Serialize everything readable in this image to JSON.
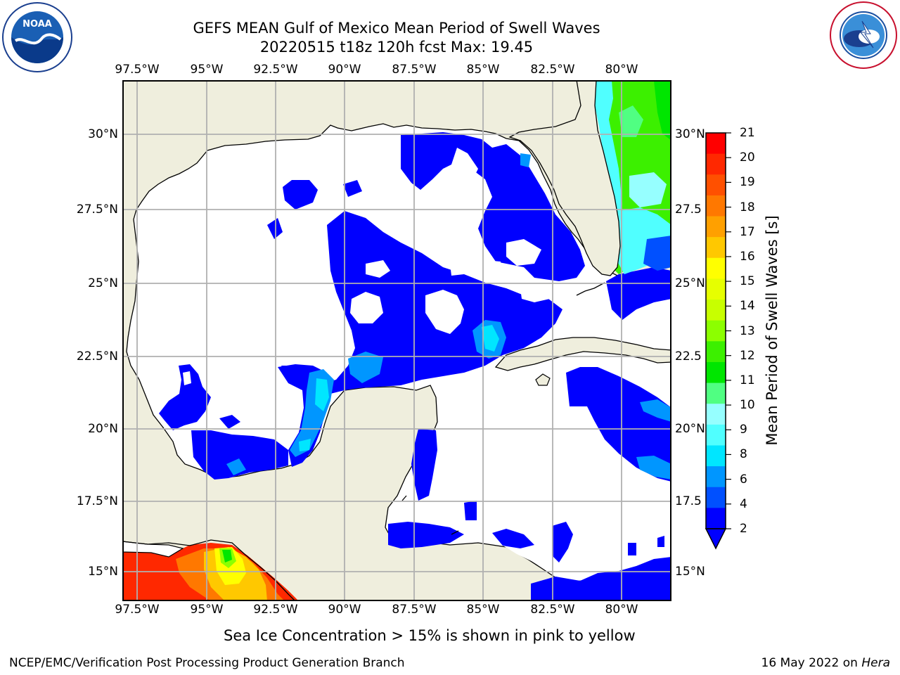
{
  "header": {
    "title_line1": "GEFS MEAN Gulf of Mexico Mean Period of Swell Waves",
    "title_line2": "20220515 t18z 120h fcst   Max: 19.45"
  },
  "logos": {
    "left": "NOAA",
    "left_ring": "NATIONAL OCEANIC AND ATMOSPHERIC ADMINISTRATION · U.S. DEPARTMENT OF COMMERCE",
    "right_ring": "NATIONAL WEATHER SERVICE"
  },
  "map": {
    "lon_labels": [
      "97.5°W",
      "95°W",
      "92.5°W",
      "90°W",
      "87.5°W",
      "85°W",
      "82.5°W",
      "80°W"
    ],
    "lat_labels_left": [
      "30°N",
      "27.5°N",
      "25°N",
      "22.5°N",
      "20°N",
      "17.5°N",
      "15°N"
    ],
    "lat_labels_right": [
      "30°N",
      "27.5",
      "25°N",
      "22.5",
      "20°N",
      "17.5",
      "15°N"
    ],
    "colors": {
      "land": "#efeedd",
      "ocean": "#ffffff",
      "grid": "#b0b0b0",
      "coast": "#000000"
    }
  },
  "colorbar": {
    "label": "Mean Period of Swell Waves [s]",
    "ticks": [
      "21",
      "20",
      "19",
      "18",
      "17",
      "16",
      "15",
      "14",
      "13",
      "12",
      "11",
      "10",
      "9",
      "8",
      "6",
      "4",
      "2"
    ],
    "colors": [
      "#ff0000",
      "#ff2800",
      "#ff5000",
      "#ff7800",
      "#ffa000",
      "#ffc800",
      "#ffff00",
      "#e6ff00",
      "#c8ff00",
      "#8cff00",
      "#3cf000",
      "#00e600",
      "#50ff82",
      "#96ffff",
      "#50ffff",
      "#00e6ff",
      "#0096ff",
      "#0050ff",
      "#0000ff"
    ]
  },
  "footer": {
    "note": "Sea Ice Concentration > 15% is shown in pink to yellow",
    "org": "NCEP/EMC/Verification Post Processing Product Generation Branch",
    "date": "16 May 2022 on",
    "machine": "Hera"
  }
}
